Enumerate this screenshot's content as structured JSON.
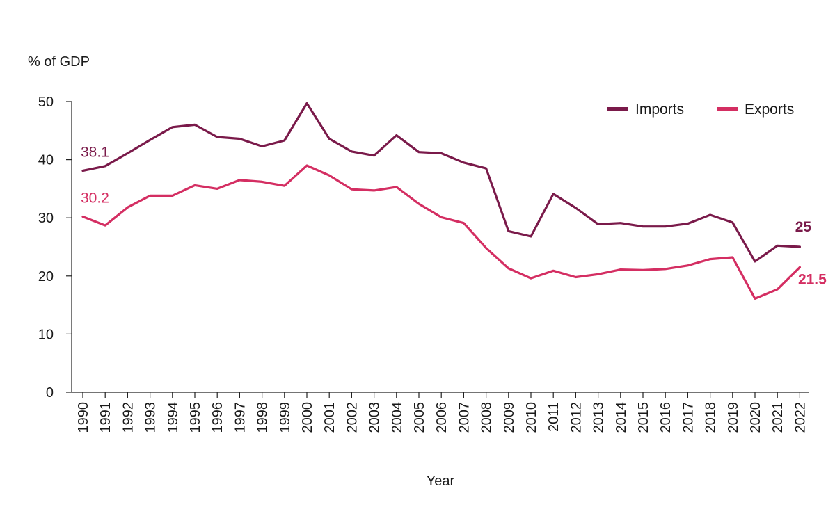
{
  "chart_data": {
    "type": "line",
    "ylabel": "% of GDP",
    "xlabel": "Year",
    "ylim": [
      0,
      50
    ],
    "yticks": [
      0,
      10,
      20,
      30,
      40,
      50
    ],
    "grid": false,
    "legend_position": "top-right",
    "x": [
      "1990",
      "1991",
      "1992",
      "1993",
      "1994",
      "1995",
      "1996",
      "1997",
      "1998",
      "1999",
      "2000",
      "2001",
      "2002",
      "2003",
      "2004",
      "2005",
      "2006",
      "2007",
      "2008",
      "2009",
      "2010",
      "2011",
      "2012",
      "2013",
      "2014",
      "2015",
      "2016",
      "2017",
      "2018",
      "2019",
      "2020",
      "2021",
      "2022"
    ],
    "series": [
      {
        "name": "Imports",
        "color": "#7a1a4a",
        "values": [
          38.1,
          38.9,
          41.1,
          43.4,
          45.6,
          46.0,
          43.9,
          43.6,
          42.3,
          43.3,
          49.7,
          43.6,
          41.4,
          40.7,
          44.2,
          41.3,
          41.1,
          39.5,
          38.5,
          27.7,
          26.8,
          34.1,
          31.7,
          28.9,
          29.1,
          28.5,
          28.5,
          29.0,
          30.5,
          29.2,
          22.5,
          25.2,
          25.0
        ]
      },
      {
        "name": "Exports",
        "color": "#d42e62",
        "values": [
          30.2,
          28.7,
          31.8,
          33.8,
          33.8,
          35.6,
          35.0,
          36.5,
          36.2,
          35.5,
          39.0,
          37.3,
          34.9,
          34.7,
          35.3,
          32.4,
          30.1,
          29.1,
          24.8,
          21.3,
          19.6,
          20.9,
          19.8,
          20.3,
          21.1,
          21.0,
          21.2,
          21.8,
          22.9,
          23.2,
          16.1,
          17.7,
          21.5
        ]
      }
    ],
    "annotations": [
      {
        "series": "Imports",
        "position": "start",
        "text": "38.1"
      },
      {
        "series": "Exports",
        "position": "start",
        "text": "30.2"
      },
      {
        "series": "Imports",
        "position": "end",
        "text": "25"
      },
      {
        "series": "Exports",
        "position": "end",
        "text": "21.5"
      }
    ]
  }
}
